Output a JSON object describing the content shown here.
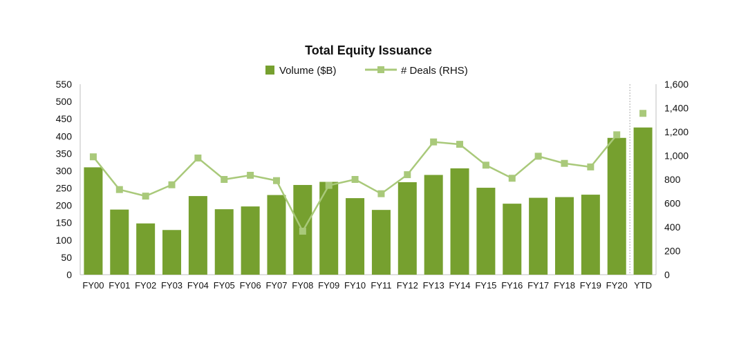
{
  "chart_data": {
    "type": "bar",
    "title": "Total Equity Issuance",
    "categories": [
      "FY00",
      "FY01",
      "FY02",
      "FY03",
      "FY04",
      "FY05",
      "FY06",
      "FY07",
      "FY08",
      "FY09",
      "FY10",
      "FY11",
      "FY12",
      "FY13",
      "FY14",
      "FY15",
      "FY16",
      "FY17",
      "FY18",
      "FY19",
      "FY20",
      "YTD"
    ],
    "series": [
      {
        "name": "Volume ($B)",
        "type": "bar",
        "axis": "left",
        "color": "#76a02f",
        "values": [
          310,
          188,
          148,
          129,
          227,
          189,
          197,
          230,
          259,
          268,
          221,
          187,
          267,
          288,
          307,
          251,
          205,
          222,
          224,
          231,
          395,
          425
        ]
      },
      {
        "name": "# Deals (RHS)",
        "type": "line",
        "axis": "right",
        "color": "#a9c97a",
        "values": [
          990,
          715,
          660,
          755,
          980,
          800,
          835,
          790,
          365,
          750,
          800,
          680,
          840,
          1115,
          1095,
          920,
          810,
          995,
          935,
          905,
          1175,
          1355
        ],
        "connected_through": "FY20"
      }
    ],
    "left_axis": {
      "min": 0,
      "max": 550,
      "ticks": [
        "0",
        "50",
        "100",
        "150",
        "200",
        "250",
        "300",
        "350",
        "400",
        "450",
        "500",
        "550"
      ]
    },
    "right_axis": {
      "min": 0,
      "max": 1600,
      "ticks": [
        "0",
        "200",
        "400",
        "600",
        "800",
        "1,000",
        "1,200",
        "1,400",
        "1,600"
      ]
    },
    "legend_position": "top-center",
    "separator_before": "YTD",
    "grid": false
  }
}
